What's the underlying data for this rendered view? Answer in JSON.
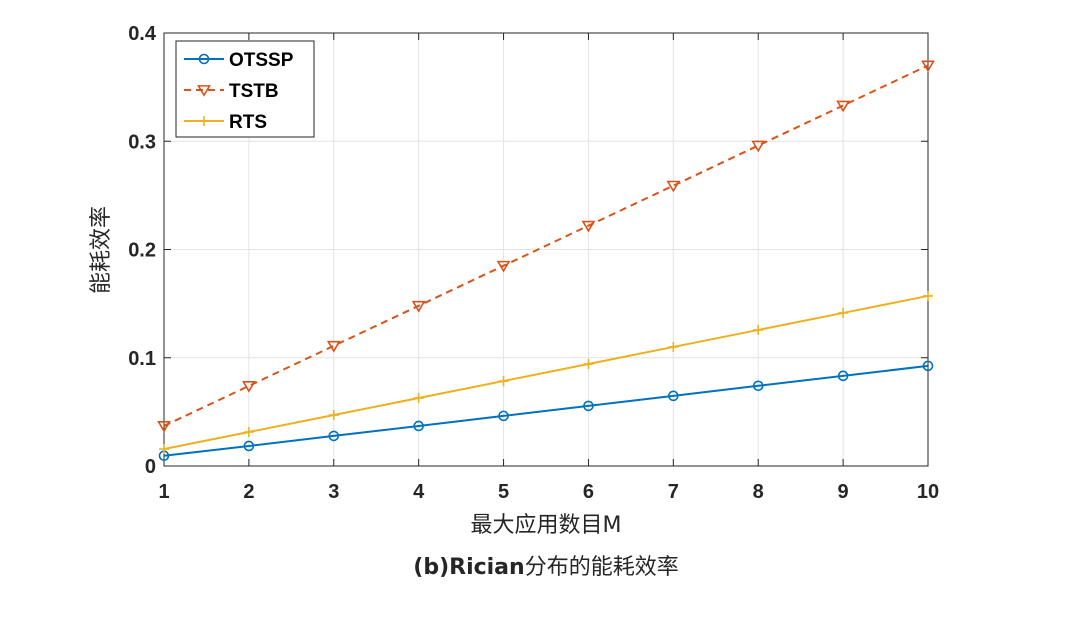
{
  "chart_data": {
    "type": "line",
    "xlabel": "最大应用数目M",
    "ylabel": "能耗效率",
    "caption": {
      "prefix": "(b)Rician",
      "suffix": "分布的能耗效率"
    },
    "xlim": [
      1,
      10
    ],
    "ylim": [
      0,
      0.4
    ],
    "xticks": [
      1,
      2,
      3,
      4,
      5,
      6,
      7,
      8,
      9,
      10
    ],
    "yticks": [
      0,
      0.1,
      0.2,
      0.3,
      0.4
    ],
    "ytick_labels": [
      "0",
      "0.1",
      "0.2",
      "0.3",
      "0.4"
    ],
    "grid": true,
    "legend_position": "top-left",
    "x": [
      1,
      2,
      3,
      4,
      5,
      6,
      7,
      8,
      9,
      10
    ],
    "series": [
      {
        "name": "OTSSP",
        "color": "#0072BD",
        "line_style": "solid",
        "marker": "circle",
        "values": [
          0.0095,
          0.0185,
          0.0278,
          0.037,
          0.0463,
          0.0555,
          0.0648,
          0.0741,
          0.0833,
          0.0925
        ]
      },
      {
        "name": "TSTB",
        "color": "#D95319",
        "line_style": "dashed",
        "marker": "triangle-down",
        "values": [
          0.037,
          0.074,
          0.111,
          0.148,
          0.185,
          0.222,
          0.259,
          0.296,
          0.333,
          0.37
        ]
      },
      {
        "name": "RTS",
        "color": "#EDB120",
        "line_style": "solid",
        "marker": "plus",
        "values": [
          0.0157,
          0.0314,
          0.0471,
          0.0628,
          0.0785,
          0.0942,
          0.11,
          0.1257,
          0.1414,
          0.1571
        ]
      }
    ]
  }
}
